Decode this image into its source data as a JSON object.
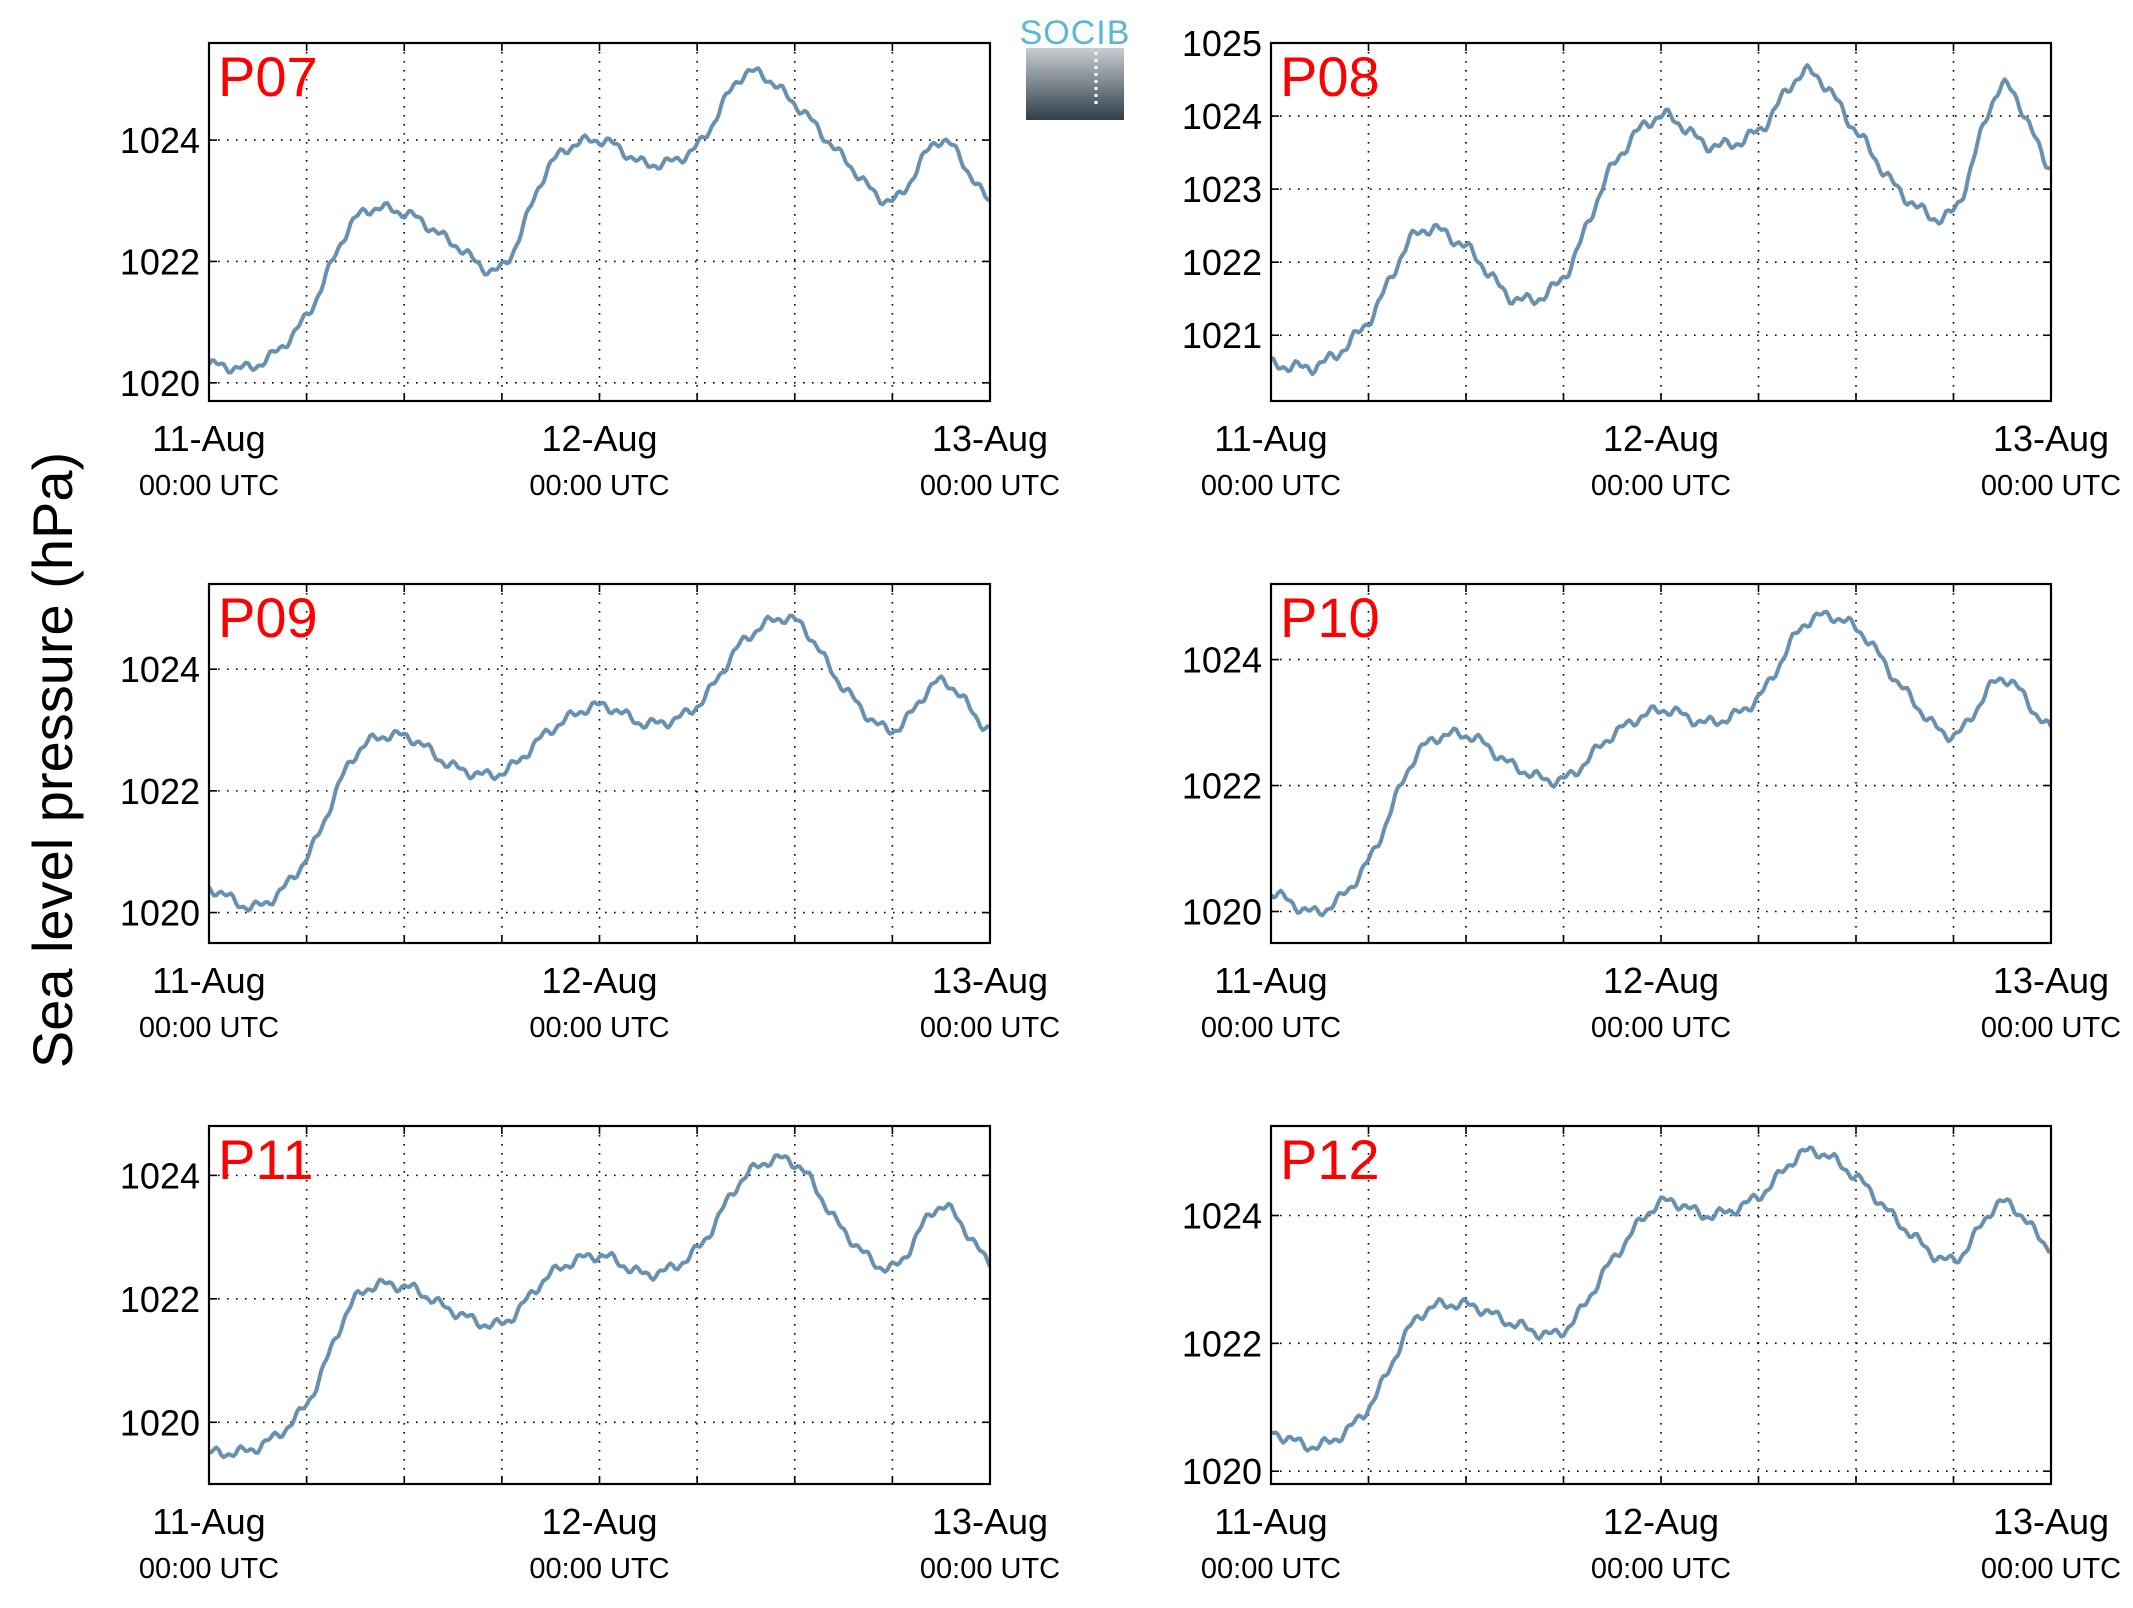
{
  "figure": {
    "ylabel": "Sea level pressure (hPa)",
    "logo_text": "SOCIB",
    "colors": {
      "line": "#6890B0",
      "panel_label": "#FF0000",
      "frame": "#000000",
      "grid": "#000000",
      "logo_text": "#5BB8D0",
      "logo_top": "#C8CDD2",
      "logo_bottom": "#2F3E48"
    }
  },
  "chart_data": [
    {
      "type": "line",
      "title": "P07",
      "x": [
        "11-Aug 00:00",
        "11-Aug 03:00",
        "11-Aug 06:00",
        "11-Aug 09:00",
        "11-Aug 12:00",
        "11-Aug 15:00",
        "11-Aug 18:00",
        "11-Aug 21:00",
        "12-Aug 00:00",
        "12-Aug 03:00",
        "12-Aug 06:00",
        "12-Aug 09:00",
        "12-Aug 12:00",
        "12-Aug 15:00",
        "12-Aug 18:00",
        "12-Aug 21:00",
        "13-Aug 00:00"
      ],
      "x_ticks": [
        {
          "label": "11-Aug",
          "sublabel": "00:00 UTC"
        },
        {
          "label": "12-Aug",
          "sublabel": "00:00 UTC"
        },
        {
          "label": "13-Aug",
          "sublabel": "00:00 UTC"
        }
      ],
      "y_ticks": [
        1020,
        1022,
        1024
      ],
      "ylim": [
        1019.7,
        1025.6
      ],
      "values": [
        1020.3,
        1020.3,
        1021.1,
        1022.7,
        1022.8,
        1022.3,
        1021.9,
        1023.6,
        1024.0,
        1023.6,
        1023.9,
        1025.1,
        1024.6,
        1023.7,
        1023.0,
        1024.0,
        1023.0
      ],
      "grid": true
    },
    {
      "type": "line",
      "title": "P08",
      "x": [
        "11-Aug 00:00",
        "11-Aug 03:00",
        "11-Aug 06:00",
        "11-Aug 09:00",
        "11-Aug 12:00",
        "11-Aug 15:00",
        "11-Aug 18:00",
        "11-Aug 21:00",
        "12-Aug 00:00",
        "12-Aug 03:00",
        "12-Aug 06:00",
        "12-Aug 09:00",
        "12-Aug 12:00",
        "12-Aug 15:00",
        "12-Aug 18:00",
        "12-Aug 21:00",
        "13-Aug 00:00"
      ],
      "x_ticks": [
        {
          "label": "11-Aug",
          "sublabel": "00:00 UTC"
        },
        {
          "label": "12-Aug",
          "sublabel": "00:00 UTC"
        },
        {
          "label": "13-Aug",
          "sublabel": "00:00 UTC"
        }
      ],
      "y_ticks": [
        1021,
        1022,
        1023,
        1024,
        1025
      ],
      "ylim": [
        1020.1,
        1025.0
      ],
      "values": [
        1020.6,
        1020.6,
        1021.2,
        1022.4,
        1022.2,
        1021.5,
        1021.8,
        1023.3,
        1024.0,
        1023.6,
        1023.8,
        1024.6,
        1023.8,
        1022.9,
        1022.7,
        1024.4,
        1023.3
      ],
      "grid": true
    },
    {
      "type": "line",
      "title": "P09",
      "x": [
        "11-Aug 00:00",
        "11-Aug 03:00",
        "11-Aug 06:00",
        "11-Aug 09:00",
        "11-Aug 12:00",
        "11-Aug 15:00",
        "11-Aug 18:00",
        "11-Aug 21:00",
        "12-Aug 00:00",
        "12-Aug 03:00",
        "12-Aug 06:00",
        "12-Aug 09:00",
        "12-Aug 12:00",
        "12-Aug 15:00",
        "12-Aug 18:00",
        "12-Aug 21:00",
        "13-Aug 00:00"
      ],
      "x_ticks": [
        {
          "label": "11-Aug",
          "sublabel": "00:00 UTC"
        },
        {
          "label": "12-Aug",
          "sublabel": "00:00 UTC"
        },
        {
          "label": "13-Aug",
          "sublabel": "00:00 UTC"
        }
      ],
      "y_ticks": [
        1020,
        1022,
        1024
      ],
      "ylim": [
        1019.5,
        1025.4
      ],
      "values": [
        1020.4,
        1020.1,
        1020.9,
        1022.6,
        1022.9,
        1022.4,
        1022.3,
        1023.0,
        1023.4,
        1023.1,
        1023.4,
        1024.5,
        1024.8,
        1023.7,
        1023.0,
        1023.8,
        1023.0
      ],
      "grid": true
    },
    {
      "type": "line",
      "title": "P10",
      "x": [
        "11-Aug 00:00",
        "11-Aug 03:00",
        "11-Aug 06:00",
        "11-Aug 09:00",
        "11-Aug 12:00",
        "11-Aug 15:00",
        "11-Aug 18:00",
        "11-Aug 21:00",
        "12-Aug 00:00",
        "12-Aug 03:00",
        "12-Aug 06:00",
        "12-Aug 09:00",
        "12-Aug 12:00",
        "12-Aug 15:00",
        "12-Aug 18:00",
        "12-Aug 21:00",
        "13-Aug 00:00"
      ],
      "x_ticks": [
        {
          "label": "11-Aug",
          "sublabel": "00:00 UTC"
        },
        {
          "label": "12-Aug",
          "sublabel": "00:00 UTC"
        },
        {
          "label": "13-Aug",
          "sublabel": "00:00 UTC"
        }
      ],
      "y_ticks": [
        1020,
        1022,
        1024
      ],
      "ylim": [
        1019.5,
        1025.2
      ],
      "values": [
        1020.3,
        1020.0,
        1020.8,
        1022.5,
        1022.8,
        1022.3,
        1022.1,
        1022.8,
        1023.2,
        1023.0,
        1023.4,
        1024.6,
        1024.5,
        1023.5,
        1022.8,
        1023.7,
        1022.9
      ],
      "grid": true
    },
    {
      "type": "line",
      "title": "P11",
      "x": [
        "11-Aug 00:00",
        "11-Aug 03:00",
        "11-Aug 06:00",
        "11-Aug 09:00",
        "11-Aug 12:00",
        "11-Aug 15:00",
        "11-Aug 18:00",
        "11-Aug 21:00",
        "12-Aug 00:00",
        "12-Aug 03:00",
        "12-Aug 06:00",
        "12-Aug 09:00",
        "12-Aug 12:00",
        "12-Aug 15:00",
        "12-Aug 18:00",
        "12-Aug 21:00",
        "13-Aug 00:00"
      ],
      "x_ticks": [
        {
          "label": "11-Aug",
          "sublabel": "00:00 UTC"
        },
        {
          "label": "12-Aug",
          "sublabel": "00:00 UTC"
        },
        {
          "label": "13-Aug",
          "sublabel": "00:00 UTC"
        }
      ],
      "y_ticks": [
        1020,
        1022,
        1024
      ],
      "ylim": [
        1019.0,
        1024.8
      ],
      "values": [
        1019.5,
        1019.6,
        1020.3,
        1022.0,
        1022.2,
        1021.8,
        1021.6,
        1022.4,
        1022.7,
        1022.4,
        1022.8,
        1024.0,
        1024.2,
        1023.1,
        1022.5,
        1023.5,
        1022.6
      ],
      "grid": true
    },
    {
      "type": "line",
      "title": "P12",
      "x": [
        "11-Aug 00:00",
        "11-Aug 03:00",
        "11-Aug 06:00",
        "11-Aug 09:00",
        "11-Aug 12:00",
        "11-Aug 15:00",
        "11-Aug 18:00",
        "11-Aug 21:00",
        "12-Aug 00:00",
        "12-Aug 03:00",
        "12-Aug 06:00",
        "12-Aug 09:00",
        "12-Aug 12:00",
        "12-Aug 15:00",
        "12-Aug 18:00",
        "12-Aug 21:00",
        "13-Aug 00:00"
      ],
      "x_ticks": [
        {
          "label": "11-Aug",
          "sublabel": "00:00 UTC"
        },
        {
          "label": "12-Aug",
          "sublabel": "00:00 UTC"
        },
        {
          "label": "13-Aug",
          "sublabel": "00:00 UTC"
        }
      ],
      "y_ticks": [
        1020,
        1022,
        1024
      ],
      "ylim": [
        1019.8,
        1025.4
      ],
      "values": [
        1020.6,
        1020.4,
        1021.0,
        1022.4,
        1022.6,
        1022.3,
        1022.2,
        1023.3,
        1024.2,
        1024.0,
        1024.3,
        1025.0,
        1024.6,
        1023.8,
        1023.3,
        1024.2,
        1023.5
      ],
      "grid": true
    }
  ]
}
